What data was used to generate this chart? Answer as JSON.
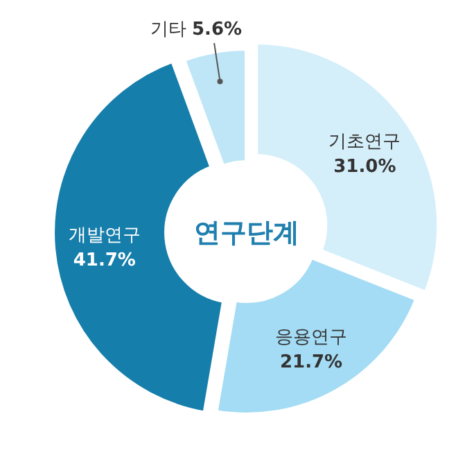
{
  "chart_data": {
    "type": "donut",
    "annotations": [
      "연구단계"
    ],
    "categories": [
      "기초연구",
      "응용연구",
      "개발연구",
      "기타"
    ],
    "values": [
      31.0,
      21.7,
      41.7,
      5.6
    ],
    "value_labels": [
      "31.0%",
      "21.7%",
      "41.7%",
      "5.6%"
    ],
    "colors": [
      "#d5effa",
      "#a3dcf4",
      "#167eab",
      "#bfe6f6"
    ],
    "legend": false
  }
}
